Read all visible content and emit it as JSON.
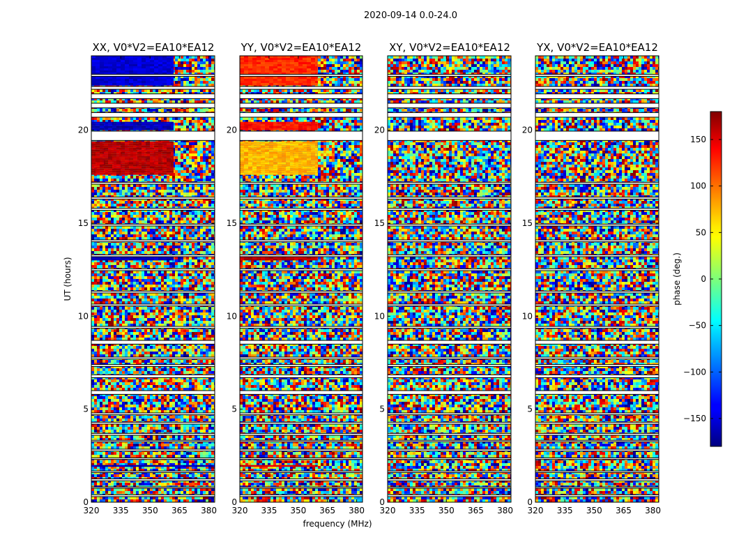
{
  "figure": {
    "suptitle": "2020-09-14 0.0-24.0",
    "xlabel": "frequency (MHz)",
    "ylabel": "UT (hours)"
  },
  "chart_data": {
    "type": "heatmap",
    "xlim": [
      320,
      383
    ],
    "ylim": [
      0,
      24
    ],
    "x_ticks": [
      320,
      335,
      350,
      365,
      380
    ],
    "y_ticks": [
      0,
      5,
      10,
      15,
      20
    ],
    "panels": [
      {
        "title": "XX, V0*V2=EA10*EA12",
        "product": "XX",
        "show_y_ticklabels": true,
        "show_ylabel": true,
        "show_xlabel": false
      },
      {
        "title": "YY, V0*V2=EA10*EA12",
        "product": "YY",
        "show_y_ticklabels": true,
        "show_ylabel": false,
        "show_xlabel": true
      },
      {
        "title": "XY, V0*V2=EA10*EA12",
        "product": "XY",
        "show_y_ticklabels": true,
        "show_ylabel": false,
        "show_xlabel": false
      },
      {
        "title": "YX, V0*V2=EA10*EA12",
        "product": "YX",
        "show_y_ticklabels": true,
        "show_ylabel": false,
        "show_xlabel": false
      }
    ],
    "colorbar": {
      "label": "phase (deg.)",
      "range": [
        -180,
        180
      ],
      "ticks": [
        -150,
        -100,
        -50,
        0,
        50,
        100,
        150
      ],
      "tick_labels": [
        "−150",
        "−100",
        "−50",
        "0",
        "50",
        "100",
        "150"
      ],
      "colormap": "jet"
    },
    "flagged_ut_ranges": [
      [
        0.3,
        0.4
      ],
      [
        0.75,
        0.82
      ],
      [
        1.15,
        1.25
      ],
      [
        1.6,
        1.68
      ],
      [
        2.3,
        2.38
      ],
      [
        2.75,
        2.85
      ],
      [
        3.25,
        3.33
      ],
      [
        3.6,
        3.7
      ],
      [
        4.2,
        4.3
      ],
      [
        4.7,
        4.8
      ],
      [
        5.8,
        6.0
      ],
      [
        6.7,
        6.85
      ],
      [
        7.3,
        7.4
      ],
      [
        7.7,
        7.8
      ],
      [
        8.5,
        8.7
      ],
      [
        9.35,
        9.45
      ],
      [
        10.55,
        10.65
      ],
      [
        11.25,
        11.35
      ],
      [
        12.45,
        12.55
      ],
      [
        13.2,
        13.3
      ],
      [
        14.0,
        14.1
      ],
      [
        14.85,
        14.95
      ],
      [
        15.7,
        15.8
      ],
      [
        16.3,
        16.4
      ],
      [
        17.1,
        17.2
      ],
      [
        19.45,
        19.95
      ],
      [
        20.7,
        20.95
      ],
      [
        21.2,
        21.45
      ],
      [
        21.7,
        21.95
      ],
      [
        22.2,
        22.35
      ],
      [
        22.9,
        23.0
      ]
    ],
    "coherent_phase_blocks": {
      "XX": [
        {
          "ut": [
            22.4,
            24.0
          ],
          "freq": [
            320,
            362
          ],
          "phase": -150
        },
        {
          "ut": [
            20.0,
            20.45
          ],
          "freq": [
            320,
            362
          ],
          "phase": -160
        },
        {
          "ut": [
            17.6,
            19.4
          ],
          "freq": [
            320,
            362
          ],
          "phase": 160
        },
        {
          "ut": [
            13.0,
            13.2
          ],
          "freq": [
            320,
            362
          ],
          "phase": -160
        },
        {
          "ut": [
            1.9,
            2.0
          ],
          "freq": [
            320,
            383
          ],
          "phase": -160
        }
      ],
      "YY": [
        {
          "ut": [
            22.4,
            24.0
          ],
          "freq": [
            320,
            360
          ],
          "phase": 120
        },
        {
          "ut": [
            20.0,
            20.45
          ],
          "freq": [
            320,
            360
          ],
          "phase": 130
        },
        {
          "ut": [
            17.6,
            19.4
          ],
          "freq": [
            320,
            360
          ],
          "phase": 70
        },
        {
          "ut": [
            13.0,
            13.2
          ],
          "freq": [
            320,
            360
          ],
          "phase": 160
        },
        {
          "ut": [
            1.9,
            2.0
          ],
          "freq": [
            320,
            360
          ],
          "phase": 150
        }
      ],
      "XY": [],
      "YX": []
    }
  }
}
